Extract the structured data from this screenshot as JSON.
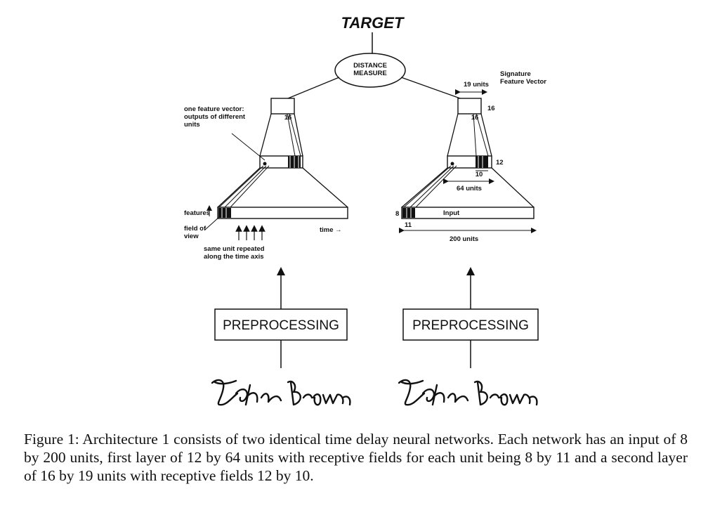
{
  "figure": {
    "target": "TARGET",
    "distance_measure": [
      "DISTANCE",
      "MEASURE"
    ],
    "left_network": {
      "feature_vector_note": [
        "one feature vector:",
        "outputs of different",
        "units"
      ],
      "second_layer_count": "16",
      "features": "features",
      "field_of_view": [
        "field of",
        "view"
      ],
      "time": "time →",
      "same_unit": [
        "same unit repeated",
        "along the time axis"
      ]
    },
    "right_network": {
      "signature": [
        "Signature",
        "Feature Vector"
      ],
      "units_19": "19 units",
      "n16_top": "16",
      "n16_side": "16",
      "n12": "12",
      "n10": "10",
      "units_64": "64 units",
      "n8": "8",
      "input": "Input",
      "n11": "11",
      "units_200": "200 units"
    },
    "preprocessing": "PREPROCESSING",
    "signature_text": "John Brown"
  },
  "caption": "Figure 1: Architecture 1 consists of two identical time delay neural networks. Each network has an input of 8 by 200 units, first layer of 12 by 64 units with receptive fields for each unit being 8 by 11 and a second layer of 16 by 19 units with receptive fields 12 by 10."
}
